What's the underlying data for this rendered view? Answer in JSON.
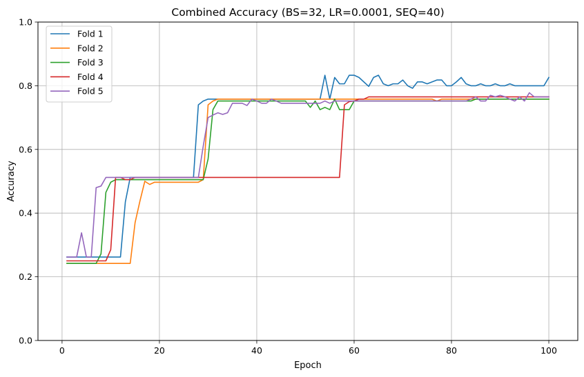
{
  "chart_data": {
    "type": "line",
    "title": "Combined Accuracy (BS=32, LR=0.0001, SEQ=40)",
    "xlabel": "Epoch",
    "ylabel": "Accuracy",
    "xlim": [
      -4.95,
      105.95
    ],
    "ylim": [
      0.0,
      1.0
    ],
    "xticks": [
      0,
      20,
      40,
      60,
      80,
      100
    ],
    "yticks": [
      0.0,
      0.2,
      0.4,
      0.6,
      0.8,
      1.0
    ],
    "xtick_labels": [
      "0",
      "20",
      "40",
      "60",
      "80",
      "100"
    ],
    "ytick_labels": [
      "0.0",
      "0.2",
      "0.4",
      "0.6",
      "0.8",
      "1.0"
    ],
    "grid": true,
    "legend_position": "top-left",
    "x_start": 1,
    "series": [
      {
        "name": "Fold 1",
        "color": "#1f77b4",
        "values": [
          0.262,
          0.262,
          0.262,
          0.262,
          0.262,
          0.262,
          0.262,
          0.262,
          0.262,
          0.262,
          0.262,
          0.262,
          0.435,
          0.512,
          0.512,
          0.512,
          0.512,
          0.512,
          0.512,
          0.512,
          0.512,
          0.512,
          0.512,
          0.512,
          0.512,
          0.512,
          0.512,
          0.74,
          0.752,
          0.758,
          0.758,
          0.758,
          0.758,
          0.758,
          0.758,
          0.758,
          0.758,
          0.758,
          0.758,
          0.758,
          0.758,
          0.758,
          0.758,
          0.758,
          0.758,
          0.758,
          0.758,
          0.758,
          0.758,
          0.758,
          0.758,
          0.758,
          0.758,
          0.833,
          0.758,
          0.826,
          0.806,
          0.806,
          0.833,
          0.833,
          0.826,
          0.812,
          0.798,
          0.826,
          0.833,
          0.806,
          0.8,
          0.806,
          0.806,
          0.818,
          0.8,
          0.792,
          0.812,
          0.812,
          0.806,
          0.812,
          0.818,
          0.818,
          0.8,
          0.8,
          0.812,
          0.826,
          0.806,
          0.8,
          0.8,
          0.806,
          0.8,
          0.8,
          0.806,
          0.8,
          0.8,
          0.806,
          0.8,
          0.8,
          0.8,
          0.8,
          0.8,
          0.8,
          0.8,
          0.826
        ]
      },
      {
        "name": "Fold 2",
        "color": "#ff7f0e",
        "values": [
          0.242,
          0.242,
          0.242,
          0.242,
          0.242,
          0.242,
          0.242,
          0.242,
          0.242,
          0.242,
          0.242,
          0.242,
          0.242,
          0.242,
          0.37,
          0.438,
          0.5,
          0.49,
          0.497,
          0.497,
          0.497,
          0.497,
          0.497,
          0.497,
          0.497,
          0.497,
          0.497,
          0.497,
          0.505,
          0.74,
          0.752,
          0.758,
          0.758,
          0.758,
          0.758,
          0.758,
          0.758,
          0.758,
          0.758,
          0.758,
          0.758,
          0.758,
          0.758,
          0.758,
          0.758,
          0.758,
          0.758,
          0.758,
          0.758,
          0.758,
          0.758,
          0.758,
          0.758,
          0.758,
          0.758,
          0.758,
          0.758,
          0.758,
          0.758,
          0.758,
          0.758,
          0.758,
          0.758,
          0.758,
          0.758,
          0.758,
          0.758,
          0.758,
          0.758,
          0.758,
          0.758,
          0.758,
          0.758,
          0.758,
          0.758,
          0.758,
          0.752,
          0.758,
          0.758,
          0.758,
          0.758,
          0.758,
          0.758,
          0.758,
          0.758,
          0.758,
          0.758,
          0.758,
          0.758,
          0.758,
          0.758,
          0.758,
          0.758,
          0.758,
          0.758,
          0.758,
          0.758,
          0.758,
          0.758,
          0.758
        ]
      },
      {
        "name": "Fold 3",
        "color": "#2ca02c",
        "values": [
          0.242,
          0.242,
          0.242,
          0.242,
          0.242,
          0.242,
          0.242,
          0.272,
          0.465,
          0.497,
          0.505,
          0.505,
          0.505,
          0.505,
          0.505,
          0.505,
          0.505,
          0.505,
          0.505,
          0.505,
          0.505,
          0.505,
          0.505,
          0.505,
          0.505,
          0.505,
          0.505,
          0.505,
          0.505,
          0.57,
          0.725,
          0.752,
          0.752,
          0.752,
          0.752,
          0.752,
          0.752,
          0.752,
          0.752,
          0.752,
          0.752,
          0.752,
          0.752,
          0.752,
          0.752,
          0.752,
          0.752,
          0.752,
          0.752,
          0.752,
          0.732,
          0.752,
          0.725,
          0.732,
          0.725,
          0.758,
          0.725,
          0.725,
          0.725,
          0.752,
          0.752,
          0.752,
          0.752,
          0.752,
          0.752,
          0.752,
          0.752,
          0.752,
          0.752,
          0.752,
          0.752,
          0.752,
          0.752,
          0.752,
          0.752,
          0.752,
          0.752,
          0.752,
          0.752,
          0.752,
          0.752,
          0.752,
          0.752,
          0.752,
          0.758,
          0.758,
          0.758,
          0.758,
          0.758,
          0.758,
          0.758,
          0.758,
          0.758,
          0.758,
          0.758,
          0.758,
          0.758,
          0.758,
          0.758,
          0.758
        ]
      },
      {
        "name": "Fold 4",
        "color": "#d62728",
        "values": [
          0.25,
          0.25,
          0.25,
          0.25,
          0.25,
          0.25,
          0.25,
          0.25,
          0.25,
          0.285,
          0.512,
          0.512,
          0.505,
          0.505,
          0.512,
          0.512,
          0.512,
          0.512,
          0.512,
          0.512,
          0.512,
          0.512,
          0.512,
          0.512,
          0.512,
          0.512,
          0.512,
          0.512,
          0.512,
          0.512,
          0.512,
          0.512,
          0.512,
          0.512,
          0.512,
          0.512,
          0.512,
          0.512,
          0.512,
          0.512,
          0.512,
          0.512,
          0.512,
          0.512,
          0.512,
          0.512,
          0.512,
          0.512,
          0.512,
          0.512,
          0.512,
          0.512,
          0.512,
          0.512,
          0.512,
          0.512,
          0.512,
          0.74,
          0.75,
          0.752,
          0.758,
          0.758,
          0.765,
          0.765,
          0.765,
          0.765,
          0.765,
          0.765,
          0.765,
          0.765,
          0.765,
          0.765,
          0.765,
          0.765,
          0.765,
          0.765,
          0.765,
          0.765,
          0.765,
          0.765,
          0.765,
          0.765,
          0.765,
          0.765,
          0.765,
          0.765,
          0.765,
          0.765,
          0.765,
          0.765,
          0.765,
          0.765,
          0.765,
          0.765,
          0.765,
          0.765,
          0.765,
          0.765,
          0.765,
          0.765
        ]
      },
      {
        "name": "Fold 5",
        "color": "#9467bd",
        "values": [
          0.262,
          0.262,
          0.262,
          0.338,
          0.262,
          0.262,
          0.48,
          0.485,
          0.512,
          0.512,
          0.512,
          0.512,
          0.512,
          0.512,
          0.512,
          0.512,
          0.512,
          0.512,
          0.512,
          0.512,
          0.512,
          0.512,
          0.512,
          0.512,
          0.512,
          0.512,
          0.512,
          0.512,
          0.61,
          0.7,
          0.708,
          0.715,
          0.71,
          0.715,
          0.745,
          0.745,
          0.745,
          0.738,
          0.758,
          0.752,
          0.745,
          0.745,
          0.758,
          0.752,
          0.745,
          0.745,
          0.745,
          0.745,
          0.745,
          0.745,
          0.745,
          0.745,
          0.745,
          0.752,
          0.745,
          0.752,
          0.752,
          0.752,
          0.752,
          0.752,
          0.752,
          0.752,
          0.752,
          0.752,
          0.752,
          0.752,
          0.752,
          0.752,
          0.752,
          0.752,
          0.752,
          0.752,
          0.752,
          0.752,
          0.752,
          0.752,
          0.752,
          0.752,
          0.752,
          0.752,
          0.752,
          0.752,
          0.752,
          0.758,
          0.765,
          0.752,
          0.752,
          0.77,
          0.765,
          0.77,
          0.765,
          0.758,
          0.752,
          0.765,
          0.752,
          0.778,
          0.765,
          0.765,
          0.765,
          0.765
        ]
      }
    ]
  }
}
